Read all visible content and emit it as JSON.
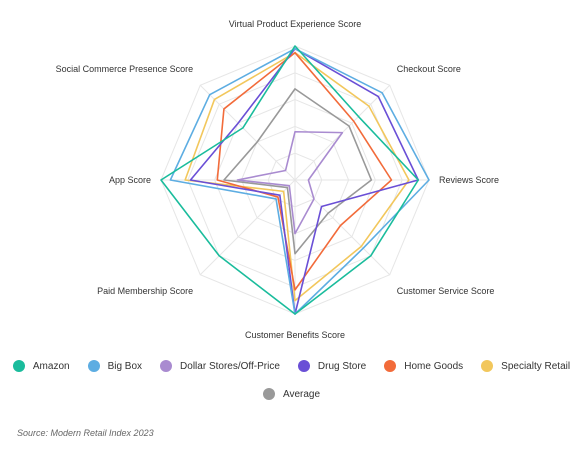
{
  "chart_data": {
    "type": "radar",
    "axes": [
      "Virtual Product Experience Score",
      "Checkout Score",
      "Reviews Score",
      "Customer Service Score",
      "Customer Benefits Score",
      "Paid Membership Score",
      "App Score",
      "Social Commerce Presence Score"
    ],
    "rlim": [
      0,
      100
    ],
    "grid_levels": 5,
    "grid": true,
    "legend_position": "bottom",
    "series": [
      {
        "name": "Amazon",
        "color": "#1abc9c",
        "values": [
          100,
          67,
          92,
          80,
          100,
          80,
          100,
          55
        ]
      },
      {
        "name": "Big Box",
        "color": "#5dade2",
        "values": [
          98,
          92,
          100,
          72,
          100,
          20,
          93,
          90
        ]
      },
      {
        "name": "Dollar Stores/Off-Price",
        "color": "#a98bd0",
        "values": [
          36,
          50,
          10,
          20,
          40,
          6,
          43,
          10
        ]
      },
      {
        "name": "Drug Store",
        "color": "#6a4fd6",
        "values": [
          98,
          88,
          92,
          28,
          100,
          16,
          78,
          60
        ]
      },
      {
        "name": "Home Goods",
        "color": "#f26b3a",
        "values": [
          95,
          62,
          72,
          48,
          82,
          18,
          58,
          75
        ]
      },
      {
        "name": "Specialty Retail",
        "color": "#f2c75c",
        "values": [
          95,
          78,
          85,
          70,
          90,
          12,
          82,
          85
        ]
      },
      {
        "name": "Average",
        "color": "#999999",
        "values": [
          68,
          57,
          57,
          35,
          55,
          8,
          53,
          40
        ]
      }
    ]
  },
  "source": "Source: Modern Retail Index 2023"
}
